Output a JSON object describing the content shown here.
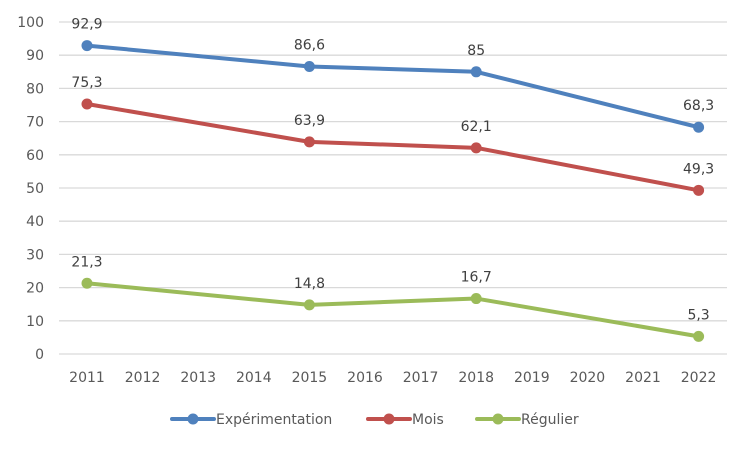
{
  "chart_data": {
    "type": "line",
    "title": "",
    "xlabel": "",
    "ylabel": "",
    "x": [
      "2011",
      "2012",
      "2013",
      "2014",
      "2015",
      "2016",
      "2017",
      "2018",
      "2019",
      "2020",
      "2021",
      "2022"
    ],
    "ylim": [
      0,
      100
    ],
    "yticks": [
      "0",
      "10",
      "20",
      "30",
      "40",
      "50",
      "60",
      "70",
      "80",
      "90",
      "100"
    ],
    "grid": true,
    "legend_position": "bottom",
    "series": [
      {
        "name": "Expérimentation",
        "color": "#4f81bd",
        "points": [
          {
            "x": "2011",
            "y": 92.9,
            "label": "92,9"
          },
          {
            "x": "2015",
            "y": 86.6,
            "label": "86,6"
          },
          {
            "x": "2018",
            "y": 85,
            "label": "85"
          },
          {
            "x": "2022",
            "y": 68.3,
            "label": "68,3"
          }
        ]
      },
      {
        "name": "Mois",
        "color": "#c0504d",
        "points": [
          {
            "x": "2011",
            "y": 75.3,
            "label": "75,3"
          },
          {
            "x": "2015",
            "y": 63.9,
            "label": "63,9"
          },
          {
            "x": "2018",
            "y": 62.1,
            "label": "62,1"
          },
          {
            "x": "2022",
            "y": 49.3,
            "label": "49,3"
          }
        ]
      },
      {
        "name": "Régulier",
        "color": "#9bbb59",
        "points": [
          {
            "x": "2011",
            "y": 21.3,
            "label": "21,3"
          },
          {
            "x": "2015",
            "y": 14.8,
            "label": "14,8"
          },
          {
            "x": "2018",
            "y": 16.7,
            "label": "16,7"
          },
          {
            "x": "2022",
            "y": 5.3,
            "label": "5,3"
          }
        ]
      }
    ]
  }
}
